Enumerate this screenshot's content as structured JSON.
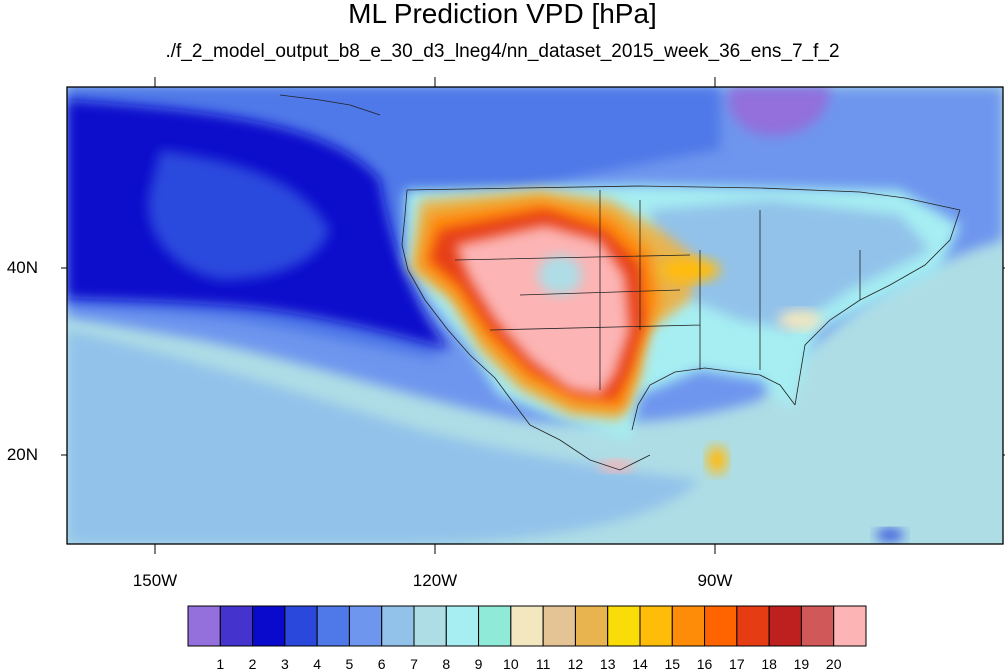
{
  "title": "ML Prediction VPD [hPa]",
  "subtitle": "./f_2_model_output_b8_e_30_d3_lneg4/nn_dataset_2015_week_36_ens_7_f_2",
  "axes": {
    "lat_labels": [
      {
        "label": "40N",
        "value": 40
      },
      {
        "label": "20N",
        "value": 20
      }
    ],
    "lon_labels": [
      {
        "label": "150W",
        "value": -150
      },
      {
        "label": "120W",
        "value": -120
      },
      {
        "label": "90W",
        "value": -90
      }
    ],
    "lon_range": [
      -160,
      -60
    ],
    "lat_range": [
      10,
      59
    ]
  },
  "colorbar": {
    "labels": [
      "1",
      "2",
      "3",
      "4",
      "5",
      "6",
      "7",
      "8",
      "9",
      "10",
      "11",
      "12",
      "13",
      "14",
      "15",
      "16",
      "17",
      "18",
      "19",
      "20"
    ],
    "colors": [
      "#9370DB",
      "#4433CC",
      "#0A0ACC",
      "#2B48DD",
      "#4F78E8",
      "#6E96EE",
      "#92C2EA",
      "#AEDDE6",
      "#A6EEF2",
      "#90EAD8",
      "#F3E7C0",
      "#E4C494",
      "#E8B450",
      "#FADC08",
      "#FFBC08",
      "#FF8C08",
      "#FF6400",
      "#E63C14",
      "#BE2020",
      "#D05858",
      "#FCB4B4"
    ]
  }
}
